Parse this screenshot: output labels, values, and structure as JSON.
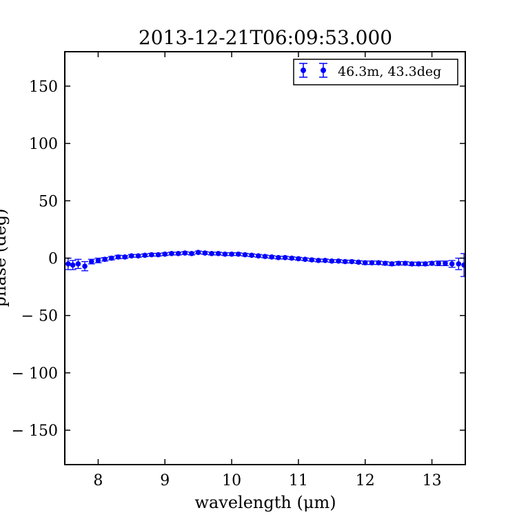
{
  "chart_data": {
    "type": "scatter",
    "title": "2013-12-21T06:09:53.000",
    "xlabel": "wavelength (μm)",
    "ylabel": "phase (deg)",
    "xlim": [
      7.5,
      13.5
    ],
    "ylim": [
      -180,
      180
    ],
    "xticks": [
      8,
      9,
      10,
      11,
      12,
      13
    ],
    "yticks": [
      150,
      100,
      50,
      0,
      -50,
      -100,
      -150
    ],
    "xtick_labels": [
      "8",
      "9",
      "10",
      "11",
      "12",
      "13"
    ],
    "ytick_labels": [
      "150",
      "100",
      "50",
      "0",
      "− 50",
      "− 100",
      "− 150"
    ],
    "grid": false,
    "legend": {
      "position": "top-right",
      "entries": [
        "46.3m, 43.3deg"
      ]
    },
    "series": [
      {
        "name": "46.3m, 43.3deg",
        "color": "#0000ff",
        "marker": "circle",
        "x": [
          7.55,
          7.62,
          7.7,
          7.8,
          7.9,
          8.0,
          8.1,
          8.2,
          8.3,
          8.4,
          8.5,
          8.6,
          8.7,
          8.8,
          8.9,
          9.0,
          9.1,
          9.2,
          9.3,
          9.4,
          9.5,
          9.6,
          9.7,
          9.8,
          9.9,
          10.0,
          10.1,
          10.2,
          10.3,
          10.4,
          10.5,
          10.6,
          10.7,
          10.8,
          10.9,
          11.0,
          11.1,
          11.2,
          11.3,
          11.4,
          11.5,
          11.6,
          11.7,
          11.8,
          11.9,
          12.0,
          12.1,
          12.2,
          12.3,
          12.4,
          12.5,
          12.6,
          12.7,
          12.8,
          12.9,
          13.0,
          13.1,
          13.2,
          13.3,
          13.4,
          13.48
        ],
        "y": [
          -5,
          -6,
          -5,
          -7,
          -3,
          -2,
          -1,
          0,
          1,
          1,
          2,
          2,
          2.5,
          3,
          3,
          3.5,
          4,
          4,
          4.5,
          4,
          5,
          4.5,
          4,
          4,
          3.5,
          3.5,
          3.5,
          3,
          2.5,
          2,
          1.5,
          1,
          0.5,
          0.5,
          0,
          -0.5,
          -1,
          -1.5,
          -2,
          -2,
          -2.5,
          -2.5,
          -3,
          -3,
          -3.5,
          -4,
          -4,
          -4,
          -4.5,
          -5,
          -4.5,
          -4.5,
          -5,
          -5,
          -5,
          -4.5,
          -4.5,
          -4.5,
          -5,
          -5,
          -6
        ],
        "yerr": [
          5,
          4,
          4,
          4,
          2,
          2,
          1.5,
          1.5,
          1.5,
          1.2,
          1.2,
          1.2,
          1.2,
          1.2,
          1.2,
          1.2,
          1.2,
          1.2,
          1.2,
          1.2,
          1.2,
          1.2,
          1.2,
          1.2,
          1.2,
          1.2,
          1.2,
          1.2,
          1.2,
          1.2,
          1.2,
          1.2,
          1.2,
          1.2,
          1.2,
          1.2,
          1.2,
          1.2,
          1.2,
          1.2,
          1.2,
          1.2,
          1.2,
          1.2,
          1.2,
          1.5,
          1.5,
          1.5,
          1.5,
          1.5,
          1.5,
          1.5,
          1.5,
          1.5,
          1.5,
          1.5,
          2,
          2,
          3,
          5,
          10
        ]
      }
    ]
  }
}
